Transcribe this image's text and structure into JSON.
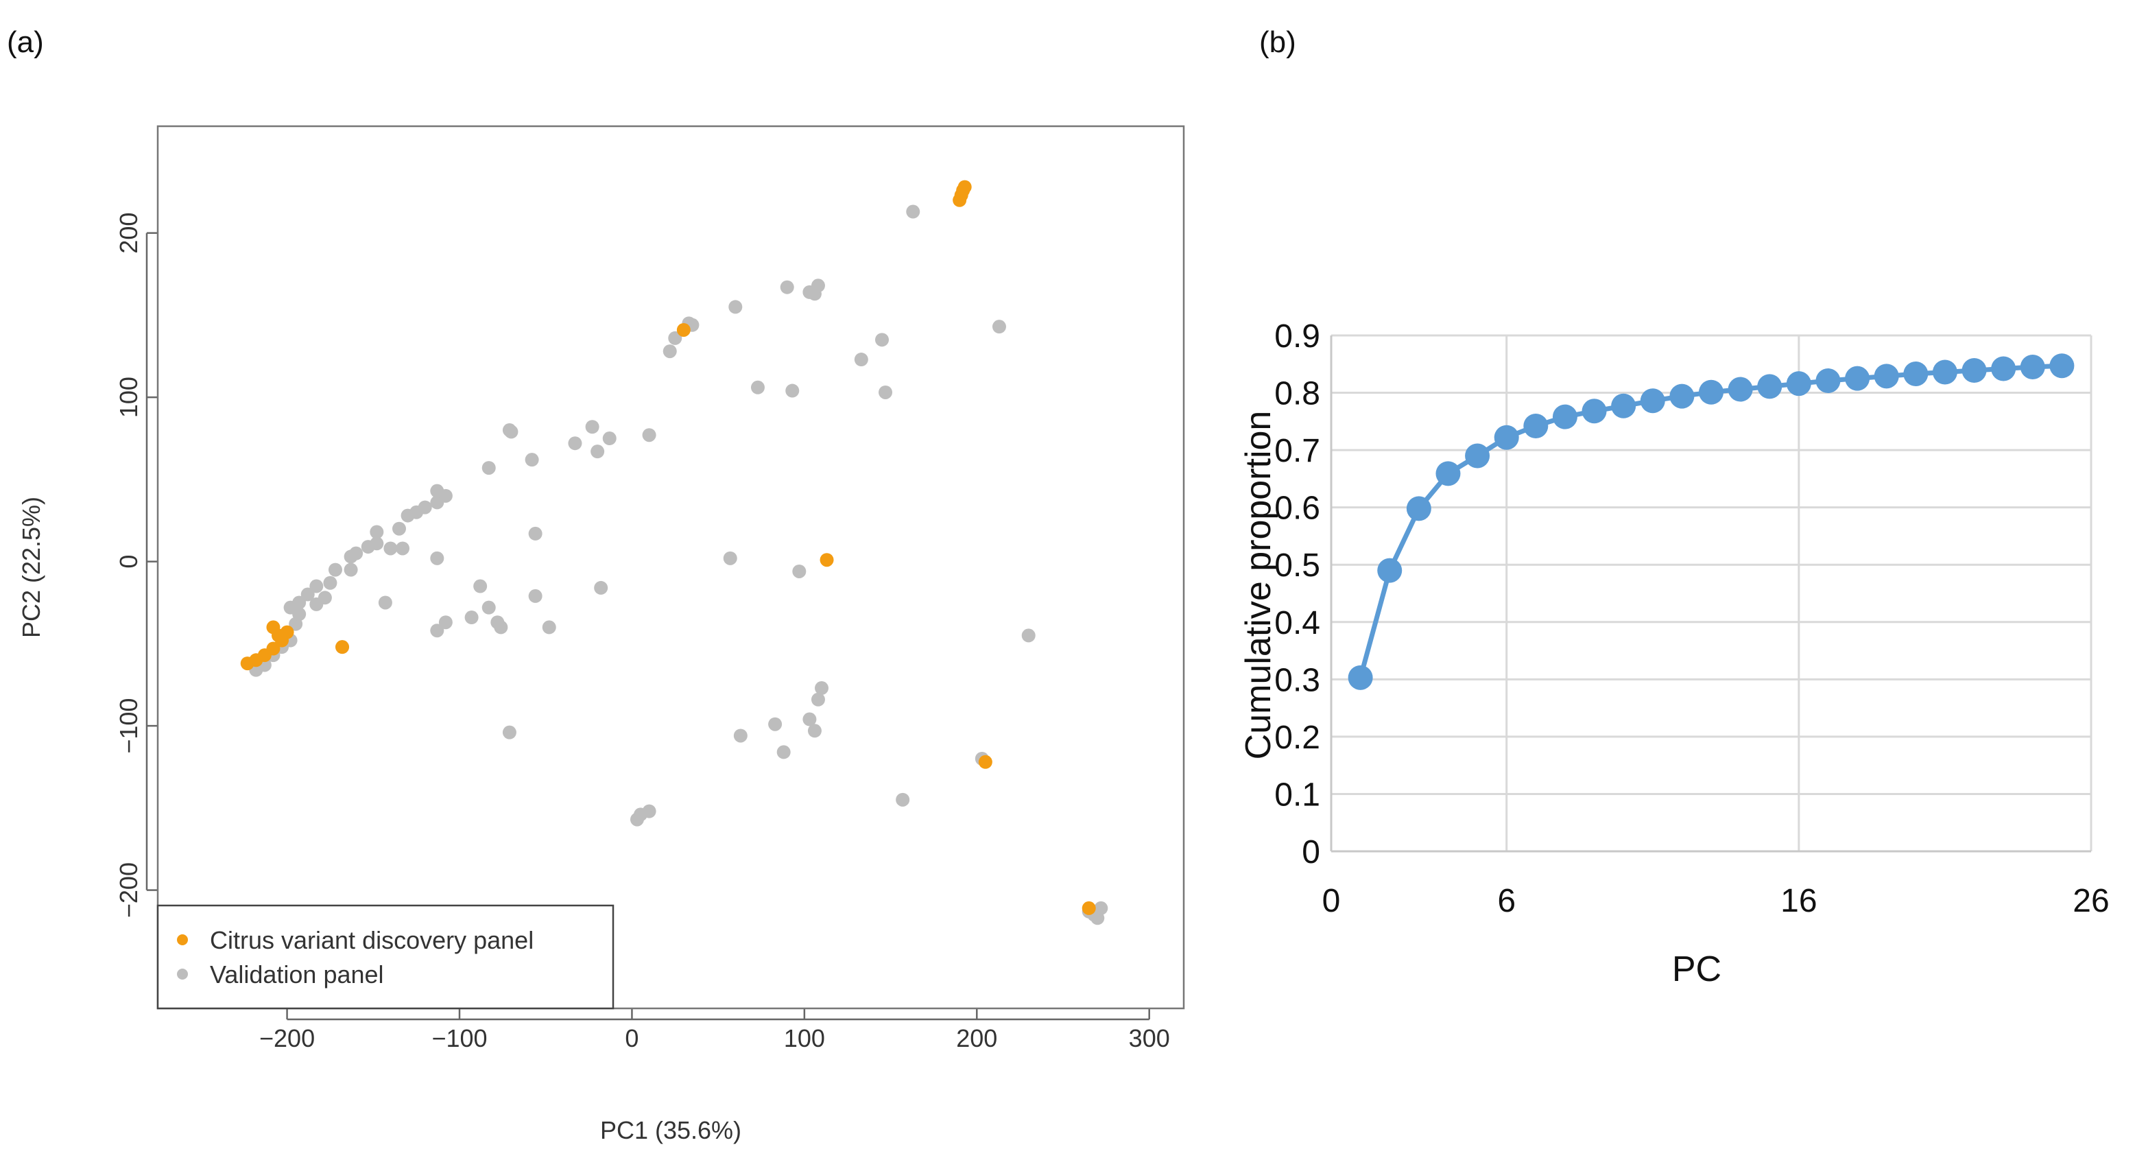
{
  "panels": {
    "a_label": "(a)",
    "b_label": "(b)"
  },
  "colors": {
    "discovery": "#f39c12",
    "validation": "#bdbdbd",
    "line": "#5b9bd5",
    "grid": "#d9d9d9",
    "axis_dark": "#555555"
  },
  "chart_data": [
    {
      "type": "scatter",
      "title": "",
      "xlabel": "PC1 (35.6%)",
      "ylabel": "PC2 (22.5%)",
      "xlim": [
        -275,
        320
      ],
      "ylim": [
        -272,
        265
      ],
      "xticks": [
        -200,
        -100,
        0,
        100,
        200,
        300
      ],
      "xtick_labels": [
        "−200",
        "−100",
        "0",
        "100",
        "200",
        "300"
      ],
      "yticks": [
        -200,
        -100,
        0,
        100,
        200
      ],
      "ytick_labels": [
        "−200",
        "−100",
        "0",
        "100",
        "200"
      ],
      "legend_position": "bottom-left",
      "series": [
        {
          "name": "Validation panel",
          "color_key": "validation",
          "points": [
            [
              -218,
              -66
            ],
            [
              -213,
              -63
            ],
            [
              -208,
              -57
            ],
            [
              -203,
              -52
            ],
            [
              -198,
              -48
            ],
            [
              -195,
              -38
            ],
            [
              -193,
              -32
            ],
            [
              -198,
              -28
            ],
            [
              -193,
              -25
            ],
            [
              -188,
              -20
            ],
            [
              -183,
              -15
            ],
            [
              -178,
              -22
            ],
            [
              -175,
              -13
            ],
            [
              -172,
              -5
            ],
            [
              -163,
              3
            ],
            [
              -160,
              5
            ],
            [
              -153,
              9
            ],
            [
              -148,
              11
            ],
            [
              -148,
              18
            ],
            [
              -140,
              8
            ],
            [
              -133,
              8
            ],
            [
              -135,
              20
            ],
            [
              -130,
              28
            ],
            [
              -125,
              30
            ],
            [
              -120,
              33
            ],
            [
              -113,
              36
            ],
            [
              -113,
              43
            ],
            [
              -108,
              40
            ],
            [
              -168,
              -52
            ],
            [
              -183,
              -26
            ],
            [
              -163,
              -5
            ],
            [
              -143,
              -25
            ],
            [
              -113,
              -42
            ],
            [
              -108,
              -37
            ],
            [
              -113,
              2
            ],
            [
              -93,
              -34
            ],
            [
              -88,
              -15
            ],
            [
              -83,
              -28
            ],
            [
              -78,
              -37
            ],
            [
              -76,
              -40
            ],
            [
              -71,
              80
            ],
            [
              -70,
              79
            ],
            [
              -71,
              -104
            ],
            [
              -58,
              62
            ],
            [
              -56,
              17
            ],
            [
              -56,
              -21
            ],
            [
              -48,
              -40
            ],
            [
              -83,
              57
            ],
            [
              -33,
              72
            ],
            [
              -23,
              82
            ],
            [
              -20,
              67
            ],
            [
              -13,
              75
            ],
            [
              -18,
              -16
            ],
            [
              10,
              77
            ],
            [
              3,
              -157
            ],
            [
              5,
              -154
            ],
            [
              10,
              -152
            ],
            [
              22,
              128
            ],
            [
              25,
              136
            ],
            [
              33,
              145
            ],
            [
              35,
              144
            ],
            [
              57,
              2
            ],
            [
              60,
              155
            ],
            [
              63,
              -106
            ],
            [
              73,
              106
            ],
            [
              83,
              -99
            ],
            [
              88,
              -116
            ],
            [
              90,
              167
            ],
            [
              93,
              104
            ],
            [
              97,
              -6
            ],
            [
              103,
              164
            ],
            [
              103,
              -96
            ],
            [
              106,
              163
            ],
            [
              106,
              -103
            ],
            [
              108,
              168
            ],
            [
              108,
              -84
            ],
            [
              110,
              -77
            ],
            [
              133,
              123
            ],
            [
              145,
              135
            ],
            [
              147,
              103
            ],
            [
              157,
              -145
            ],
            [
              163,
              213
            ],
            [
              203,
              -120
            ],
            [
              213,
              143
            ],
            [
              230,
              -45
            ],
            [
              265,
              -213
            ],
            [
              268,
              -215
            ],
            [
              270,
              -217
            ],
            [
              272,
              -211
            ]
          ]
        },
        {
          "name": "Citrus variant discovery panel",
          "color_key": "discovery",
          "points": [
            [
              -223,
              -62
            ],
            [
              -218,
              -60
            ],
            [
              -213,
              -57
            ],
            [
              -208,
              -53
            ],
            [
              -203,
              -48
            ],
            [
              -200,
              -43
            ],
            [
              -205,
              -45
            ],
            [
              -208,
              -40
            ],
            [
              -168,
              -52
            ],
            [
              30,
              141
            ],
            [
              113,
              1
            ],
            [
              190,
              220
            ],
            [
              191,
              223
            ],
            [
              192,
              226
            ],
            [
              193,
              228
            ],
            [
              205,
              -122
            ],
            [
              265,
              -211
            ]
          ]
        }
      ]
    },
    {
      "type": "line",
      "title": "",
      "xlabel": "PC",
      "ylabel": "Cumulative proportion",
      "xlim": [
        0,
        26
      ],
      "ylim": [
        0,
        0.9
      ],
      "xticks": [
        0,
        6,
        16,
        26
      ],
      "xtick_labels": [
        "0",
        "6",
        "16",
        "26"
      ],
      "yticks": [
        0,
        0.1,
        0.2,
        0.3,
        0.4,
        0.5,
        0.6,
        0.7,
        0.8,
        0.9
      ],
      "ytick_labels": [
        "0",
        "0.1",
        "0.2",
        "0.3",
        "0.4",
        "0.5",
        "0.6",
        "0.7",
        "0.8",
        "0.9"
      ],
      "grid": true,
      "series": [
        {
          "name": "Cumulative proportion",
          "color_key": "line",
          "x": [
            1,
            2,
            3,
            4,
            5,
            6,
            7,
            8,
            9,
            10,
            11,
            12,
            13,
            14,
            15,
            16,
            17,
            18,
            19,
            20,
            21,
            22,
            23,
            24,
            25
          ],
          "values": [
            0.303,
            0.49,
            0.598,
            0.659,
            0.69,
            0.722,
            0.742,
            0.758,
            0.768,
            0.777,
            0.786,
            0.794,
            0.801,
            0.806,
            0.811,
            0.816,
            0.821,
            0.825,
            0.829,
            0.833,
            0.836,
            0.839,
            0.842,
            0.845,
            0.847
          ]
        }
      ]
    }
  ]
}
